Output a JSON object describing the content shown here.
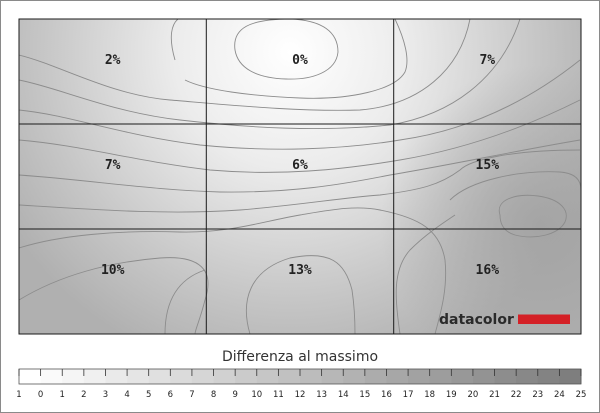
{
  "chart_data": {
    "type": "heatmap",
    "title": "",
    "legend_title": "Differenza al massimo",
    "rows": 3,
    "cols": 3,
    "cells": [
      [
        "2%",
        "0%",
        "7%"
      ],
      [
        "7%",
        "6%",
        "15%"
      ],
      [
        "10%",
        "13%",
        "16%"
      ]
    ],
    "values": [
      [
        2,
        0,
        7
      ],
      [
        7,
        6,
        15
      ],
      [
        10,
        13,
        16
      ]
    ],
    "scale_min": 0,
    "scale_max": 25,
    "scale_ticks": [
      "1",
      "0",
      "1",
      "2",
      "3",
      "4",
      "5",
      "6",
      "7",
      "8",
      "9",
      "10",
      "11",
      "12",
      "13",
      "14",
      "15",
      "16",
      "17",
      "18",
      "19",
      "20",
      "21",
      "22",
      "23",
      "24",
      "25"
    ],
    "gridlines": true
  },
  "logo": {
    "text": "datacolor",
    "accent_color": "#d42026"
  },
  "colors": {
    "low": "#ffffff",
    "high": "#7e7e7e",
    "grid": "#1a1a1a",
    "contour": "#8c8c8c"
  }
}
